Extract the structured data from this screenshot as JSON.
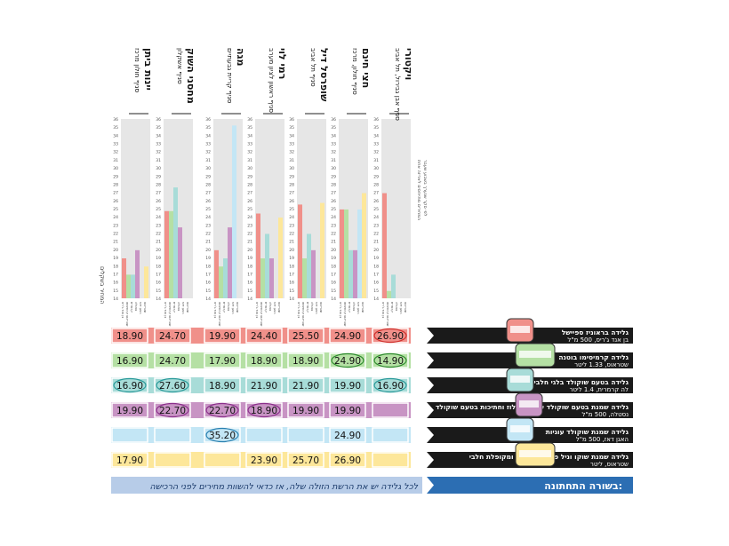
{
  "chart_data": {
    "type": "bar",
    "title": "בשורה התחתונה:",
    "footer_note": "לכל גלידה יש את הרשת הזולה שלה, אז כדאי להשוות מחירים לפני הרכישה",
    "y_axis_label": "המחיר בשקלים",
    "ylim": [
      14,
      36
    ],
    "y_ticks": [
      14,
      15,
      16,
      17,
      18,
      19,
      20,
      21,
      22,
      23,
      24,
      25,
      26,
      27,
      28,
      29,
      30,
      31,
      32,
      33,
      34,
      35,
      36
    ],
    "legend_header": [
      "המחירים מתייחסים לאריזה אחת",
      "לפי סקר שנערך בשבוע שעבר"
    ],
    "stores": [
      {
        "name": "ויקטורי",
        "branch": "סניף אבן גבירול, תל אביב"
      },
      {
        "name": "חצי חינם",
        "branch": "סניף חולון, מרכז"
      },
      {
        "name": "שופרסל דיל",
        "branch": "סניף תל אביב"
      },
      {
        "name": "רמי לוי",
        "branch": "סניף ראשון לציון מערב"
      },
      {
        "name": "מגה",
        "branch": "סניף קריית גבעתיים"
      },
      {
        "name": "מחסני השוק",
        "branch": "סניף אשקלון"
      },
      {
        "name": "יינות ביתן",
        "branch": "סניף חולון מרכז"
      }
    ],
    "series": [
      {
        "name": "בן אנד ג'ריס",
        "color": "#f0908a",
        "description": "גלידה בראוניז ספיישל",
        "package": "בן אנד ג'ריס, 500 מ\"ל",
        "values": [
          26.9,
          24.9,
          25.5,
          24.4,
          19.9,
          24.7,
          18.9
        ],
        "cheapest": [
          true,
          false,
          false,
          false,
          false,
          false,
          false
        ]
      },
      {
        "name": "שטראוס קרמיסימו",
        "color": "#b5e0a4",
        "description": "גלידה קרמיסימו בוטנה",
        "package": "שטראוס, 1.33 ליטר",
        "values": [
          14.9,
          24.9,
          18.9,
          18.9,
          17.9,
          24.7,
          16.9
        ],
        "cheapest": [
          true,
          true,
          false,
          false,
          false,
          false,
          false
        ]
      },
      {
        "name": "קרמרית",
        "color": "#a8dcd8",
        "description": "גלידה בטעם שוקולד בלגי חלבי בר\"ץ",
        "package": "לה קרמרית, 1.4 ליטר",
        "values": [
          16.9,
          19.9,
          21.9,
          21.9,
          18.9,
          27.6,
          16.9
        ],
        "cheapest": [
          true,
          false,
          false,
          false,
          false,
          true,
          true
        ]
      },
      {
        "name": "נסטלה",
        "color": "#c894c4",
        "description": "גלידה שמנת בטעם שוקולד עם אגוזי לוז וחתיכות בטעם שוקולד",
        "package": "נסטלה, 500 מ\"ל",
        "values": [
          null,
          19.9,
          19.9,
          18.9,
          22.7,
          22.7,
          19.9
        ],
        "cheapest": [
          false,
          false,
          false,
          true,
          true,
          true,
          false
        ]
      },
      {
        "name": "האגן דאז",
        "color": "#c3e6f5",
        "description": "גלידה שמנת שוקולד עוגיות",
        "package": "האגן דאז, 500 מ\"ל",
        "values": [
          null,
          24.9,
          null,
          null,
          35.2,
          null,
          null
        ],
        "cheapest": [
          false,
          false,
          false,
          false,
          true,
          false,
          false
        ]
      },
      {
        "name": "שטראוס",
        "color": "#fde79a",
        "description": "גלידה שמנת שוקו וניל פיסטוק קרמל ומקופלת חלבי",
        "package": "שטראוס, ליטר",
        "values": [
          null,
          26.9,
          25.7,
          23.9,
          null,
          null,
          17.9
        ],
        "cheapest": [
          false,
          false,
          false,
          false,
          false,
          false,
          false
        ]
      }
    ],
    "price_labels": [
      [
        "26.90",
        "24.90",
        "25.50",
        "24.40",
        "19.90",
        "24.70",
        "18.90"
      ],
      [
        "14.90",
        "24.90",
        "18.90",
        "18.90",
        "17.90",
        "24.70",
        "16.90"
      ],
      [
        "16.90",
        "19.90",
        "21.90",
        "21.90",
        "18.90",
        "27.60",
        "16.90"
      ],
      [
        "",
        "19.90",
        "19.90",
        "18.90",
        "22.70",
        "22.70",
        "19.90"
      ],
      [
        "",
        "24.90",
        "",
        "",
        "35.20",
        "",
        ""
      ],
      [
        "",
        "26.90",
        "25.70",
        "23.90",
        "",
        "",
        "17.90"
      ]
    ]
  },
  "theme": {
    "panel_grey": "#e6e6e6",
    "row_dark": "#1a1a1a",
    "banner_blue": "#2c6eb3",
    "note_blue": "#b7cce8",
    "oval_colors": [
      "#d0312d",
      "#2e8b2e",
      "#2a9a9a",
      "#8b2f8b",
      "#2a80b0",
      "#c09000"
    ]
  }
}
